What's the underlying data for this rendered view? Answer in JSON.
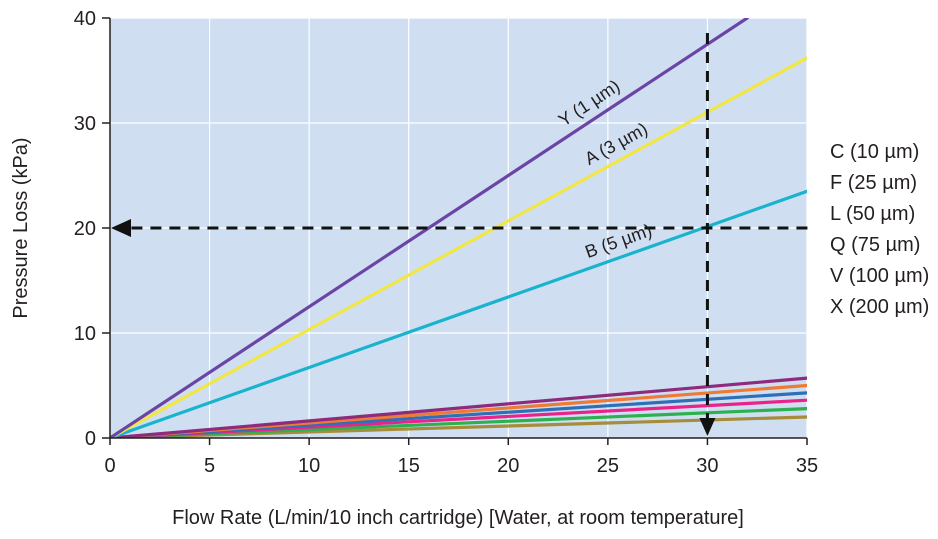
{
  "chart_data": {
    "type": "line",
    "xlabel": "Flow Rate (L/min/10 inch cartridge) [Water, at room temperature]",
    "ylabel": "Pressure Loss (kPa)",
    "xlim": [
      0,
      35
    ],
    "ylim": [
      0,
      40
    ],
    "xticks": [
      "0",
      "5",
      "10",
      "15",
      "20",
      "25",
      "30",
      "35"
    ],
    "yticks": [
      "0",
      "10",
      "20",
      "30",
      "40"
    ],
    "grid": true,
    "background": "#cfdff1",
    "series": [
      {
        "name": "Y (1 µm)",
        "color": "#6a45a5",
        "x": [
          0,
          32
        ],
        "y": [
          0,
          40
        ],
        "labeled_on_chart": true
      },
      {
        "name": "A (3 µm)",
        "color": "#f2e644",
        "x": [
          0,
          35
        ],
        "y": [
          0,
          36.2
        ],
        "labeled_on_chart": true
      },
      {
        "name": "B (5 µm)",
        "color": "#19b3cd",
        "x": [
          0,
          35
        ],
        "y": [
          0,
          23.5
        ],
        "labeled_on_chart": true
      },
      {
        "name": "",
        "color": "#8e2b7d",
        "x": [
          0,
          35
        ],
        "y": [
          0,
          5.7
        ]
      },
      {
        "name": "",
        "color": "#ee7a35",
        "x": [
          0,
          35
        ],
        "y": [
          0,
          5.0
        ]
      },
      {
        "name": "",
        "color": "#2f6fb8",
        "x": [
          0,
          35
        ],
        "y": [
          0,
          4.3
        ]
      },
      {
        "name": "",
        "color": "#e9238a",
        "x": [
          0,
          35
        ],
        "y": [
          0,
          3.6
        ]
      },
      {
        "name": "",
        "color": "#2fb04f",
        "x": [
          0,
          35
        ],
        "y": [
          0,
          2.8
        ]
      },
      {
        "name": "",
        "color": "#a58d3a",
        "x": [
          0,
          35
        ],
        "y": [
          0,
          2.0
        ]
      }
    ],
    "legend_items": [
      "C (10 µm)",
      "F (25 µm)",
      "L (50 µm)",
      "Q (75 µm)",
      "V (100 µm)",
      "X (200 µm)"
    ],
    "legend_position": "right",
    "annotations": {
      "guide_x": 30,
      "guide_y": 20,
      "style": "dashed arrows"
    }
  }
}
